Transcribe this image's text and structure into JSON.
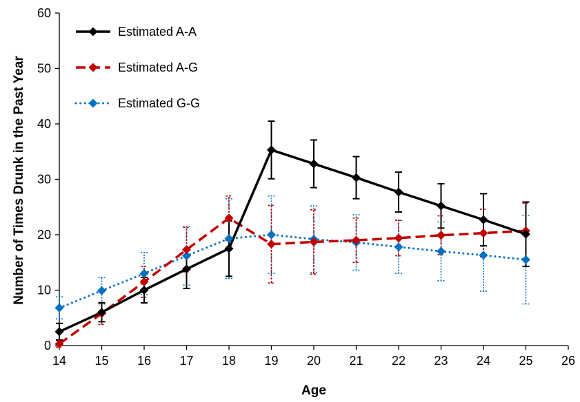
{
  "chart_data": {
    "type": "line",
    "title": "",
    "xlabel": "Age",
    "ylabel": "Number of Times Drunk in the Past Year",
    "xlim": [
      14,
      26
    ],
    "ylim": [
      0,
      60
    ],
    "x_ticks": [
      14,
      15,
      16,
      17,
      18,
      19,
      20,
      21,
      22,
      23,
      24,
      25,
      26
    ],
    "y_ticks": [
      0,
      10,
      20,
      30,
      40,
      50,
      60
    ],
    "grid": false,
    "legend_position": "top-left",
    "series": [
      {
        "name": "Estimated A-A",
        "color": "#000000",
        "line_style": "solid",
        "marker": "diamond",
        "x": [
          14,
          15,
          16,
          17,
          18,
          19,
          20,
          21,
          22,
          23,
          24,
          25
        ],
        "y": [
          2.5,
          6.0,
          10.0,
          13.8,
          17.5,
          35.3,
          32.8,
          30.3,
          27.7,
          25.2,
          22.7,
          20.1
        ],
        "error": [
          1.5,
          1.7,
          2.3,
          3.5,
          5.0,
          5.2,
          4.3,
          3.8,
          3.6,
          4.0,
          4.7,
          5.8
        ]
      },
      {
        "name": "Estimated A-G",
        "color": "#c00000",
        "line_style": "dashed",
        "marker": "diamond",
        "x": [
          14,
          15,
          16,
          17,
          18,
          19,
          20,
          21,
          22,
          23,
          24,
          25
        ],
        "y": [
          0.3,
          5.8,
          11.5,
          17.3,
          23.0,
          18.3,
          18.7,
          19.0,
          19.4,
          19.9,
          20.3,
          20.7
        ],
        "error": [
          0.6,
          2.0,
          2.8,
          4.0,
          4.0,
          7.0,
          5.8,
          4.0,
          3.2,
          3.5,
          4.3,
          5.0
        ]
      },
      {
        "name": "Estimated G-G",
        "color": "#0070c0",
        "line_style": "dotted",
        "marker": "diamond",
        "x": [
          14,
          15,
          16,
          17,
          18,
          19,
          20,
          21,
          22,
          23,
          24,
          25
        ],
        "y": [
          6.8,
          9.9,
          13.0,
          16.2,
          19.3,
          20.0,
          19.2,
          18.6,
          17.8,
          17.0,
          16.3,
          15.5
        ],
        "error": [
          2.0,
          2.4,
          3.8,
          5.3,
          7.2,
          7.0,
          6.0,
          5.0,
          4.8,
          5.3,
          6.5,
          8.0
        ]
      }
    ]
  }
}
